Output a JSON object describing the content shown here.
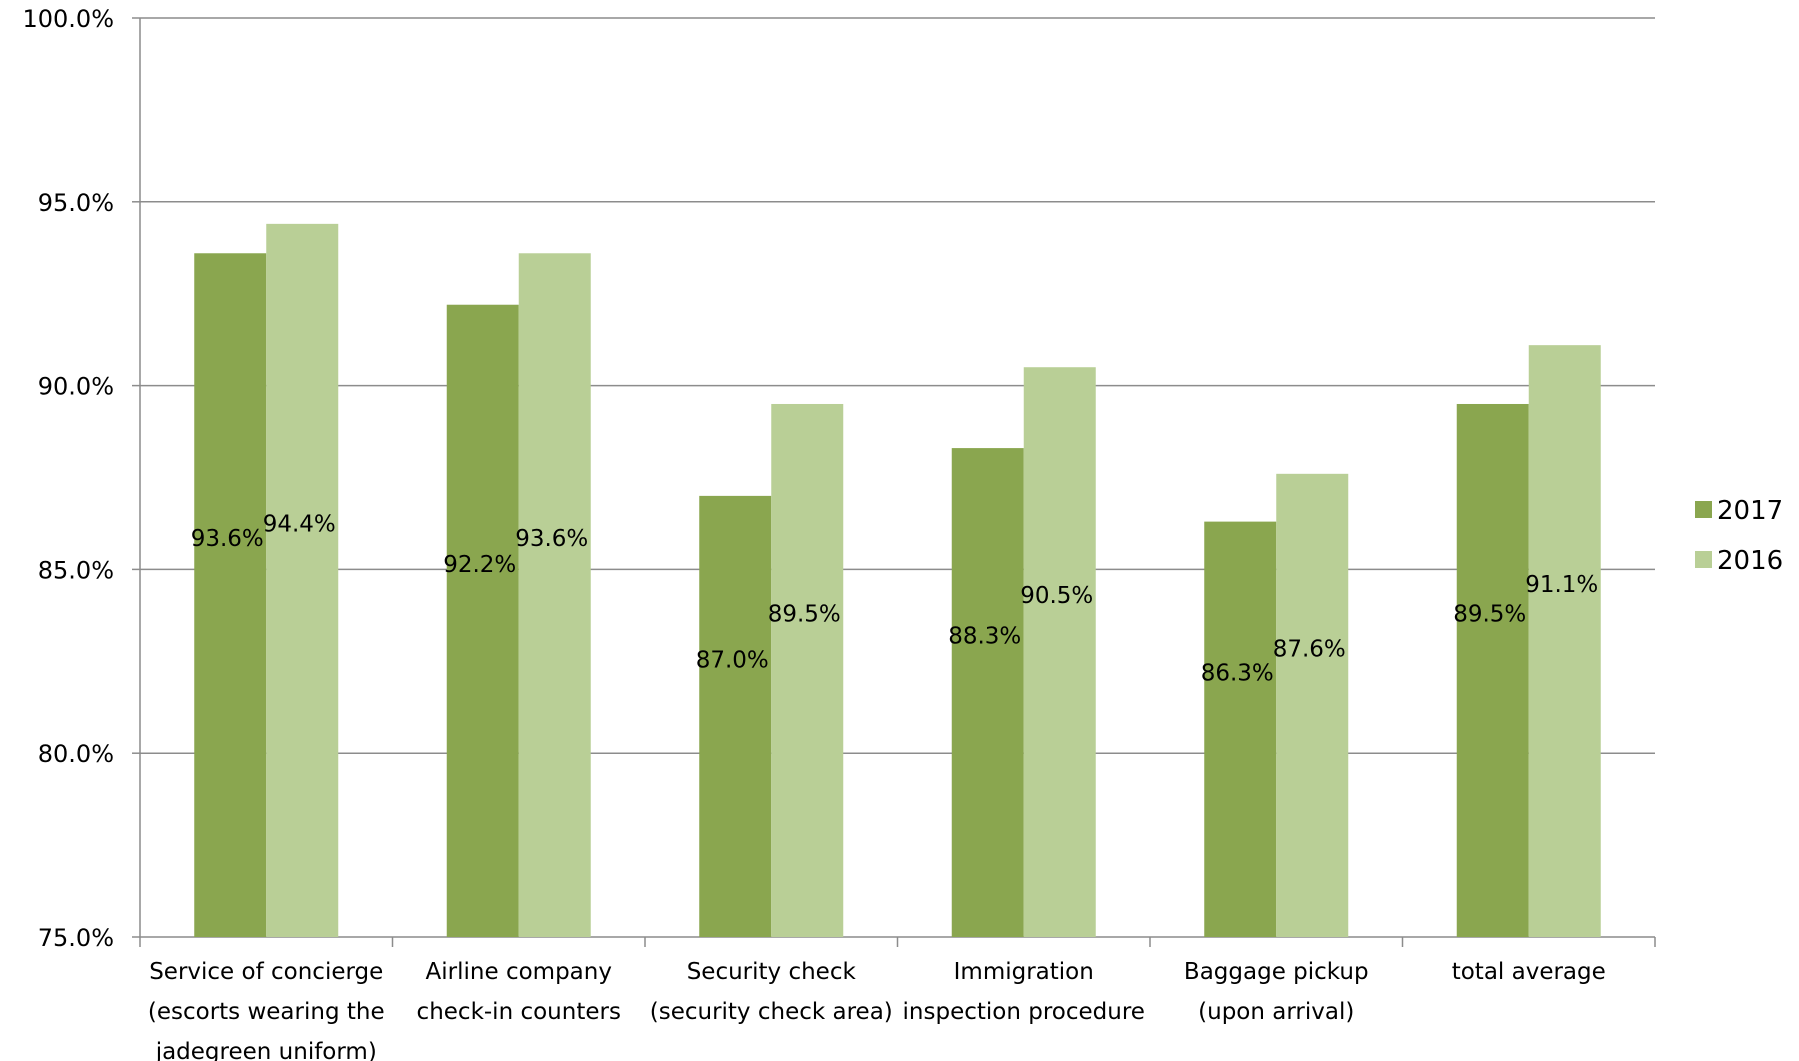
{
  "chart_data": {
    "type": "bar",
    "categories": [
      [
        "Service of concierge",
        "(escorts wearing the",
        "jadegreen uniform)"
      ],
      [
        "Airline company",
        "check-in counters"
      ],
      [
        "Security check",
        "(security check area)"
      ],
      [
        "Immigration",
        "inspection procedure"
      ],
      [
        "Baggage pickup",
        "(upon arrival)"
      ],
      [
        "total average"
      ]
    ],
    "series": [
      {
        "name": "2017",
        "values": [
          93.6,
          92.2,
          87.0,
          88.3,
          86.3,
          89.5
        ],
        "labels": [
          "93.6%",
          "92.2%",
          "87.0%",
          "88.3%",
          "86.3%",
          "89.5%"
        ],
        "color": "#8aa64f"
      },
      {
        "name": "2016",
        "values": [
          94.4,
          93.6,
          89.5,
          90.5,
          87.6,
          91.1
        ],
        "labels": [
          "94.4%",
          "93.6%",
          "89.5%",
          "90.5%",
          "87.6%",
          "91.1%"
        ],
        "color": "#b9cf96"
      }
    ],
    "y_ticks": [
      "75.0%",
      "80.0%",
      "85.0%",
      "90.0%",
      "95.0%",
      "100.0%"
    ],
    "ylim": [
      75,
      100
    ],
    "grid": true,
    "legend_position": "right"
  }
}
